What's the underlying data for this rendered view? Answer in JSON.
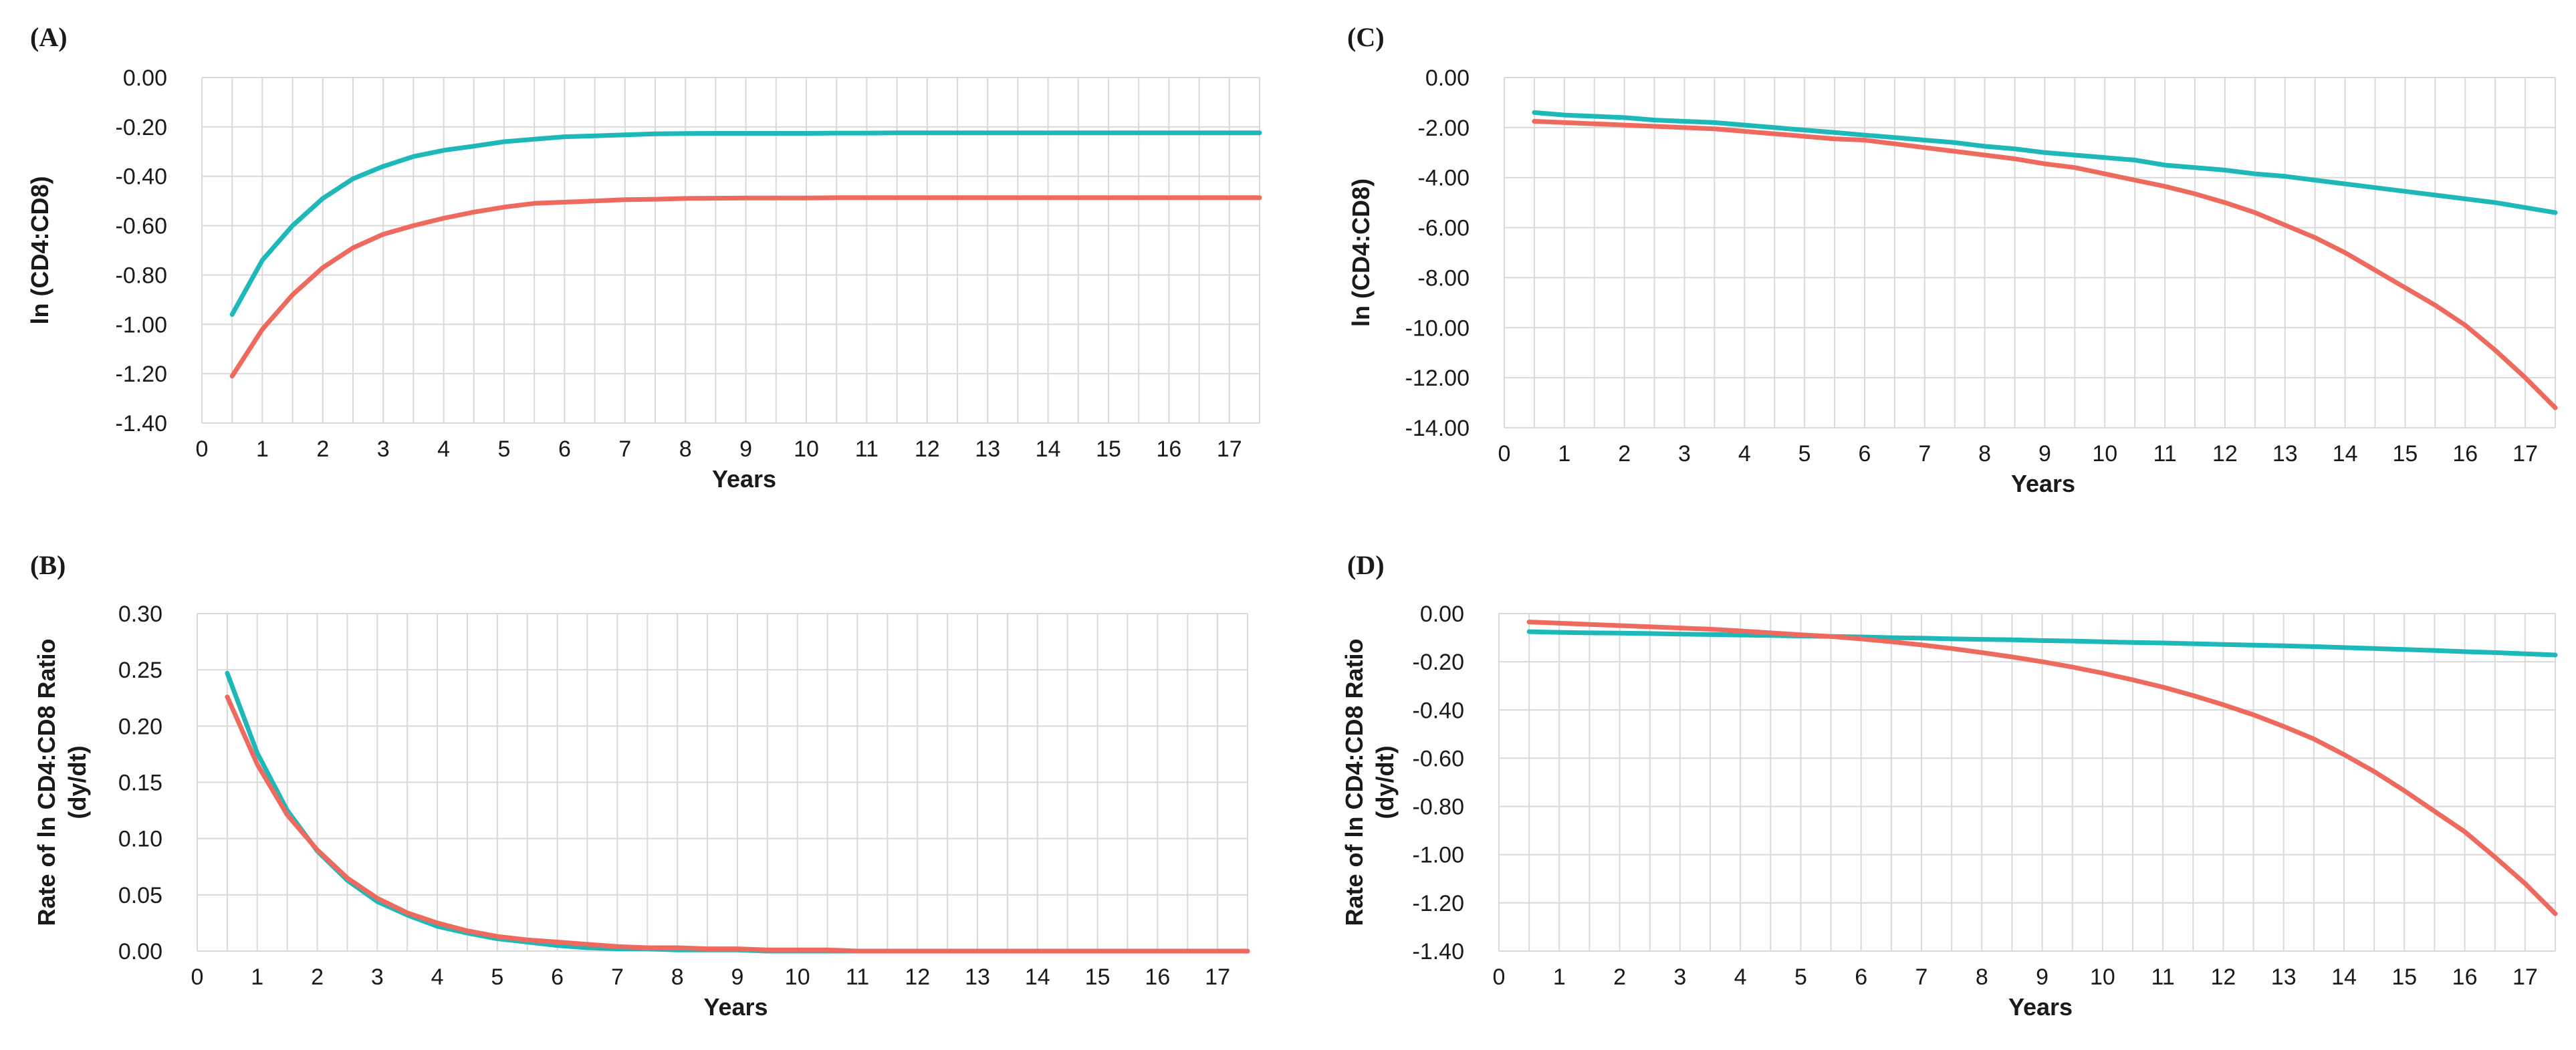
{
  "chart_data": [
    {
      "id": "A",
      "panel_label": "(A)",
      "type": "line",
      "title": "",
      "xlabel": "Years",
      "ylabel": "ln (CD4:CD8)",
      "ylabel_lines": [
        "ln (CD4:CD8)"
      ],
      "xlim": [
        0,
        17.5
      ],
      "ylim": [
        -1.4,
        0
      ],
      "x_ticks": [
        0,
        1,
        2,
        3,
        4,
        5,
        6,
        7,
        8,
        9,
        10,
        11,
        12,
        13,
        14,
        15,
        16,
        17
      ],
      "y_ticks": [
        0,
        -0.2,
        -0.4,
        -0.6,
        -0.8,
        -1.0,
        -1.2,
        -1.4
      ],
      "y_tick_labels": [
        "0.00",
        "-0.20",
        "-0.40",
        "-0.60",
        "-0.80",
        "-1.00",
        "-1.20",
        "-1.40"
      ],
      "x_grid_step": 0.5,
      "grid": true,
      "x": [
        0.5,
        1,
        1.5,
        2,
        2.5,
        3,
        3.5,
        4,
        4.5,
        5,
        5.5,
        6,
        6.5,
        7,
        7.5,
        8,
        8.5,
        9,
        9.5,
        10,
        10.5,
        11,
        11.5,
        12,
        12.5,
        13,
        13.5,
        14,
        14.5,
        15,
        15.5,
        16,
        16.5,
        17,
        17.5
      ],
      "series": [
        {
          "name": "teal",
          "color": "#1fb8b8",
          "values": [
            -0.96,
            -0.74,
            -0.6,
            -0.49,
            -0.41,
            -0.36,
            -0.32,
            -0.295,
            -0.278,
            -0.26,
            -0.25,
            -0.24,
            -0.236,
            -0.232,
            -0.228,
            -0.227,
            -0.226,
            -0.226,
            -0.226,
            -0.226,
            -0.225,
            -0.225,
            -0.224,
            -0.224,
            -0.224,
            -0.224,
            -0.224,
            -0.224,
            -0.224,
            -0.224,
            -0.224,
            -0.224,
            -0.224,
            -0.224,
            -0.224
          ]
        },
        {
          "name": "red",
          "color": "#ef6a5e",
          "values": [
            -1.21,
            -1.02,
            -0.88,
            -0.77,
            -0.69,
            -0.635,
            -0.6,
            -0.57,
            -0.545,
            -0.525,
            -0.51,
            -0.505,
            -0.5,
            -0.495,
            -0.493,
            -0.49,
            -0.489,
            -0.488,
            -0.488,
            -0.488,
            -0.487,
            -0.487,
            -0.487,
            -0.487,
            -0.487,
            -0.487,
            -0.487,
            -0.487,
            -0.487,
            -0.487,
            -0.487,
            -0.487,
            -0.487,
            -0.487,
            -0.487
          ]
        }
      ]
    },
    {
      "id": "B",
      "panel_label": "(B)",
      "type": "line",
      "title": "",
      "xlabel": "Years",
      "ylabel": "Rate of ln CD4:CD8 Ratio (dy/dt)",
      "ylabel_lines": [
        "Rate of ln CD4:CD8 Ratio",
        "(dy/dt)"
      ],
      "xlim": [
        0,
        17.5
      ],
      "ylim": [
        0,
        0.3
      ],
      "x_ticks": [
        0,
        1,
        2,
        3,
        4,
        5,
        6,
        7,
        8,
        9,
        10,
        11,
        12,
        13,
        14,
        15,
        16,
        17
      ],
      "y_ticks": [
        0.3,
        0.25,
        0.2,
        0.15,
        0.1,
        0.05,
        0
      ],
      "y_tick_labels": [
        "0.30",
        "0.25",
        "0.20",
        "0.15",
        "0.10",
        "0.05",
        "0.00"
      ],
      "x_grid_step": 0.5,
      "grid": true,
      "x": [
        0.5,
        1,
        1.5,
        2,
        2.5,
        3,
        3.5,
        4,
        4.5,
        5,
        5.5,
        6,
        6.5,
        7,
        7.5,
        8,
        8.5,
        9,
        9.5,
        10,
        10.5,
        11,
        11.5,
        12,
        12.5,
        13,
        13.5,
        14,
        14.5,
        15,
        15.5,
        16,
        16.5,
        17,
        17.5
      ],
      "series": [
        {
          "name": "teal",
          "color": "#1fb8b8",
          "values": [
            0.247,
            0.176,
            0.125,
            0.089,
            0.063,
            0.044,
            0.032,
            0.022,
            0.016,
            0.011,
            0.008,
            0.005,
            0.003,
            0.002,
            0.002,
            0.001,
            0.001,
            0.001,
            0.0,
            0.0,
            0.0,
            0.0,
            0.0,
            0.0,
            0.0,
            0.0,
            0.0,
            0.0,
            0.0,
            0.0,
            0.0,
            0.0,
            0.0,
            0.0,
            0.0
          ]
        },
        {
          "name": "red",
          "color": "#ef6a5e",
          "values": [
            0.226,
            0.166,
            0.121,
            0.09,
            0.065,
            0.047,
            0.034,
            0.025,
            0.018,
            0.013,
            0.01,
            0.008,
            0.006,
            0.004,
            0.003,
            0.003,
            0.002,
            0.002,
            0.001,
            0.001,
            0.001,
            0.0,
            0.0,
            0.0,
            0.0,
            0.0,
            0.0,
            0.0,
            0.0,
            0.0,
            0.0,
            0.0,
            0.0,
            0.0,
            0.0
          ]
        }
      ]
    },
    {
      "id": "C",
      "panel_label": "(C)",
      "type": "line",
      "title": "",
      "xlabel": "Years",
      "ylabel": "ln (CD4:CD8)",
      "ylabel_lines": [
        "ln (CD4:CD8)"
      ],
      "xlim": [
        0,
        17.5
      ],
      "ylim": [
        -14,
        0
      ],
      "x_ticks": [
        0,
        1,
        2,
        3,
        4,
        5,
        6,
        7,
        8,
        9,
        10,
        11,
        12,
        13,
        14,
        15,
        16,
        17
      ],
      "y_ticks": [
        0,
        -2,
        -4,
        -6,
        -8,
        -10,
        -12,
        -14
      ],
      "y_tick_labels": [
        "0.00",
        "-2.00",
        "-4.00",
        "-6.00",
        "-8.00",
        "-10.00",
        "-12.00",
        "-14.00"
      ],
      "x_grid_step": 0.5,
      "grid": true,
      "x": [
        0.5,
        1,
        1.5,
        2,
        2.5,
        3,
        3.5,
        4,
        4.5,
        5,
        5.5,
        6,
        6.5,
        7,
        7.5,
        8,
        8.5,
        9,
        9.5,
        10,
        10.5,
        11,
        11.5,
        12,
        12.5,
        13,
        13.5,
        14,
        14.5,
        15,
        15.5,
        16,
        16.5,
        17,
        17.5
      ],
      "series": [
        {
          "name": "teal",
          "color": "#1fb8b8",
          "values": [
            -1.4,
            -1.5,
            -1.55,
            -1.6,
            -1.7,
            -1.75,
            -1.8,
            -1.9,
            -2.0,
            -2.1,
            -2.2,
            -2.3,
            -2.4,
            -2.5,
            -2.6,
            -2.75,
            -2.85,
            -3.0,
            -3.1,
            -3.2,
            -3.3,
            -3.5,
            -3.6,
            -3.7,
            -3.85,
            -3.95,
            -4.1,
            -4.25,
            -4.4,
            -4.55,
            -4.7,
            -4.85,
            -5.0,
            -5.2,
            -5.4
          ]
        },
        {
          "name": "red",
          "color": "#ef6a5e",
          "values": [
            -1.75,
            -1.8,
            -1.85,
            -1.9,
            -1.95,
            -2.0,
            -2.05,
            -2.15,
            -2.25,
            -2.35,
            -2.45,
            -2.5,
            -2.65,
            -2.8,
            -2.95,
            -3.1,
            -3.25,
            -3.45,
            -3.6,
            -3.85,
            -4.1,
            -4.35,
            -4.65,
            -5.0,
            -5.4,
            -5.9,
            -6.4,
            -7.0,
            -7.7,
            -8.4,
            -9.1,
            -9.9,
            -10.9,
            -12.0,
            -13.2
          ]
        }
      ]
    },
    {
      "id": "D",
      "panel_label": "(D)",
      "type": "line",
      "title": "",
      "xlabel": "Years",
      "ylabel": "Rate of ln CD4:CD8 Ratio (dy/dt)",
      "ylabel_lines": [
        "Rate of ln CD4:CD8 Ratio",
        "(dy/dt)"
      ],
      "xlim": [
        0,
        17.5
      ],
      "ylim": [
        -1.4,
        0
      ],
      "x_ticks": [
        0,
        1,
        2,
        3,
        4,
        5,
        6,
        7,
        8,
        9,
        10,
        11,
        12,
        13,
        14,
        15,
        16,
        17
      ],
      "y_ticks": [
        0,
        -0.2,
        -0.4,
        -0.6,
        -0.8,
        -1.0,
        -1.2,
        -1.4
      ],
      "y_tick_labels": [
        "0.00",
        "-0.20",
        "-0.40",
        "-0.60",
        "-0.80",
        "-1.00",
        "-1.20",
        "-1.40"
      ],
      "x_grid_step": 0.5,
      "grid": true,
      "x": [
        0.5,
        1,
        1.5,
        2,
        2.5,
        3,
        3.5,
        4,
        4.5,
        5,
        5.5,
        6,
        6.5,
        7,
        7.5,
        8,
        8.5,
        9,
        9.5,
        10,
        10.5,
        11,
        11.5,
        12,
        12.5,
        13,
        13.5,
        14,
        14.5,
        15,
        15.5,
        16,
        16.5,
        17,
        17.5
      ],
      "series": [
        {
          "name": "teal",
          "color": "#1fb8b8",
          "values": [
            -0.075,
            -0.078,
            -0.08,
            -0.081,
            -0.083,
            -0.085,
            -0.087,
            -0.089,
            -0.091,
            -0.093,
            -0.095,
            -0.097,
            -0.1,
            -0.102,
            -0.105,
            -0.107,
            -0.109,
            -0.112,
            -0.114,
            -0.117,
            -0.12,
            -0.122,
            -0.125,
            -0.128,
            -0.131,
            -0.134,
            -0.137,
            -0.141,
            -0.145,
            -0.149,
            -0.153,
            -0.158,
            -0.162,
            -0.167,
            -0.172
          ]
        },
        {
          "name": "red",
          "color": "#ef6a5e",
          "values": [
            -0.035,
            -0.04,
            -0.045,
            -0.05,
            -0.055,
            -0.06,
            -0.065,
            -0.072,
            -0.08,
            -0.088,
            -0.095,
            -0.105,
            -0.117,
            -0.13,
            -0.145,
            -0.162,
            -0.18,
            -0.2,
            -0.222,
            -0.247,
            -0.275,
            -0.305,
            -0.34,
            -0.378,
            -0.42,
            -0.468,
            -0.52,
            -0.585,
            -0.655,
            -0.735,
            -0.82,
            -0.905,
            -1.01,
            -1.12,
            -1.245
          ]
        }
      ]
    }
  ]
}
